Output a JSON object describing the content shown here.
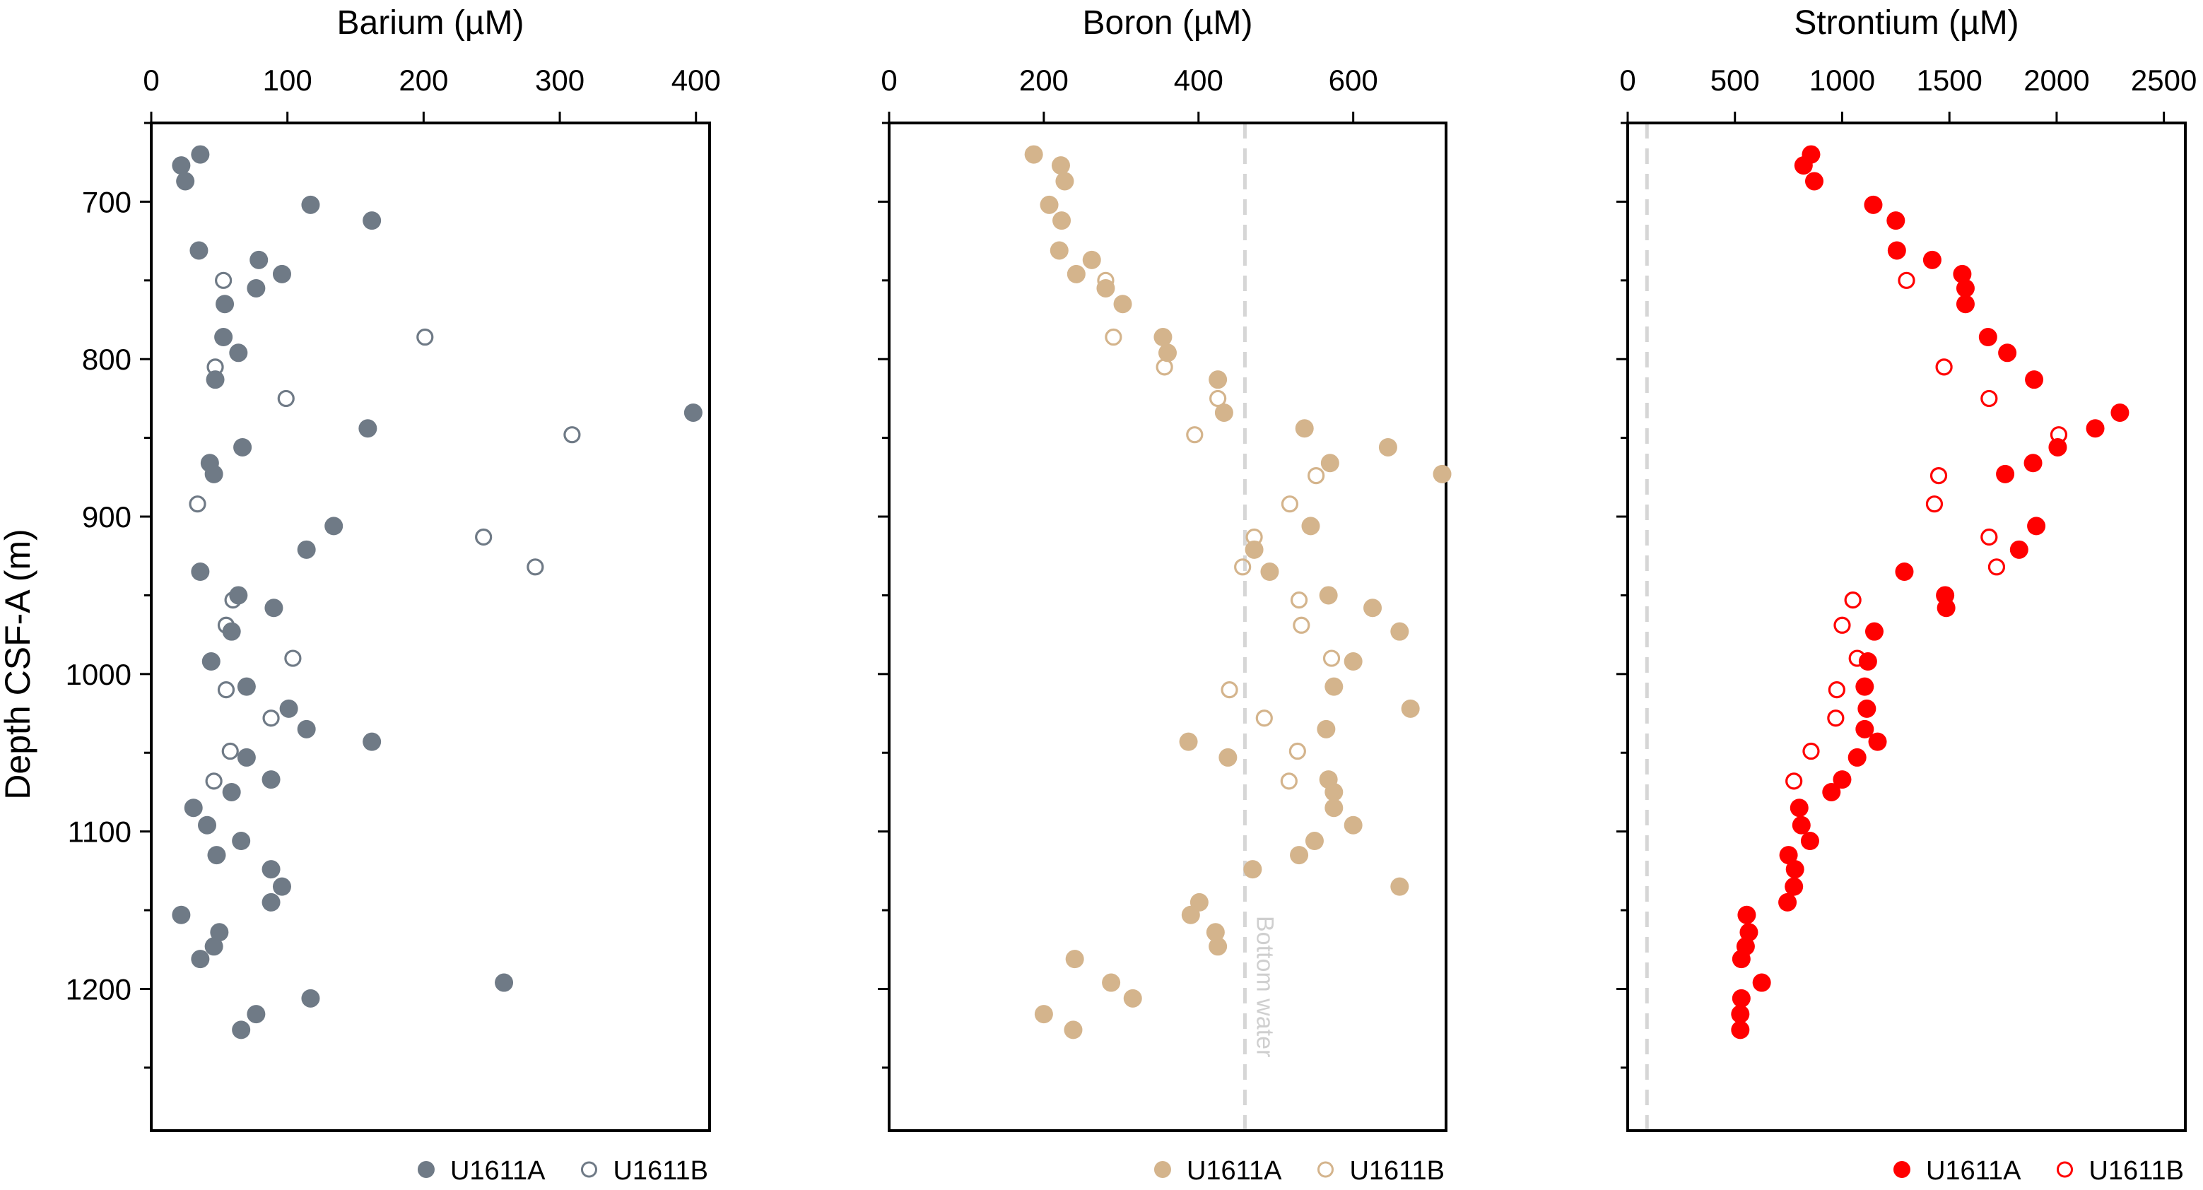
{
  "y_axis_label": "Depth CSF-A (m)",
  "chart_data": [
    {
      "type": "scatter",
      "title": "Barium (µM)",
      "xlabel": "Barium (µM)",
      "ylabel": "Depth CSF-A (m)",
      "xlim": [
        0,
        410
      ],
      "ylim": [
        1290,
        650
      ],
      "x_ticks": [
        0,
        100,
        200,
        300,
        400
      ],
      "y_ticks": [
        700,
        800,
        900,
        1000,
        1100,
        1200
      ],
      "grid": false,
      "legend_position": "bottom-right",
      "color": "#6f7a86",
      "series": [
        {
          "name": "U1611A",
          "marker": "filled-circle",
          "points": [
            [
              36,
              670
            ],
            [
              22,
              677
            ],
            [
              25,
              687
            ],
            [
              117,
              702
            ],
            [
              162,
              712
            ],
            [
              35,
              731
            ],
            [
              79,
              737
            ],
            [
              96,
              746
            ],
            [
              77,
              755
            ],
            [
              54,
              765
            ],
            [
              53,
              786
            ],
            [
              64,
              796
            ],
            [
              47,
              813
            ],
            [
              398,
              834
            ],
            [
              159,
              844
            ],
            [
              67,
              856
            ],
            [
              43,
              866
            ],
            [
              46,
              873
            ],
            [
              134,
              906
            ],
            [
              114,
              921
            ],
            [
              36,
              935
            ],
            [
              64,
              950
            ],
            [
              90,
              958
            ],
            [
              59,
              973
            ],
            [
              44,
              992
            ],
            [
              70,
              1008
            ],
            [
              101,
              1022
            ],
            [
              114,
              1035
            ],
            [
              162,
              1043
            ],
            [
              70,
              1053
            ],
            [
              88,
              1067
            ],
            [
              59,
              1075
            ],
            [
              31,
              1085
            ],
            [
              41,
              1096
            ],
            [
              66,
              1106
            ],
            [
              48,
              1115
            ],
            [
              88,
              1124
            ],
            [
              96,
              1135
            ],
            [
              88,
              1145
            ],
            [
              22,
              1153
            ],
            [
              50,
              1164
            ],
            [
              46,
              1173
            ],
            [
              36,
              1181
            ],
            [
              259,
              1196
            ],
            [
              117,
              1206
            ],
            [
              77,
              1216
            ],
            [
              66,
              1226
            ]
          ]
        },
        {
          "name": "U1611B",
          "marker": "open-circle",
          "points": [
            [
              53,
              750
            ],
            [
              201,
              786
            ],
            [
              47,
              805
            ],
            [
              99,
              825
            ],
            [
              309,
              848
            ],
            [
              34,
              892
            ],
            [
              244,
              913
            ],
            [
              282,
              932
            ],
            [
              60,
              953
            ],
            [
              55,
              969
            ],
            [
              104,
              990
            ],
            [
              55,
              1010
            ],
            [
              88,
              1028
            ],
            [
              58,
              1049
            ],
            [
              46,
              1068
            ]
          ]
        }
      ]
    },
    {
      "type": "scatter",
      "title": "Boron (µM)",
      "xlabel": "Boron (µM)",
      "ylabel": "Depth CSF-A (m)",
      "xlim": [
        0,
        720
      ],
      "ylim": [
        1290,
        650
      ],
      "x_ticks": [
        0,
        200,
        400,
        600
      ],
      "y_ticks": [
        700,
        800,
        900,
        1000,
        1100,
        1200
      ],
      "grid": false,
      "legend_position": "bottom-right",
      "color": "#d4b48c",
      "reference_line": {
        "value": 460,
        "label": "Bottom water",
        "color": "#d6d6d6",
        "style": "dashed"
      },
      "series": [
        {
          "name": "U1611A",
          "marker": "filled-circle",
          "points": [
            [
              187,
              670
            ],
            [
              222,
              677
            ],
            [
              227,
              687
            ],
            [
              207,
              702
            ],
            [
              223,
              712
            ],
            [
              262,
              737
            ],
            [
              220,
              731
            ],
            [
              242,
              746
            ],
            [
              280,
              755
            ],
            [
              302,
              765
            ],
            [
              354,
              786
            ],
            [
              360,
              796
            ],
            [
              425,
              813
            ],
            [
              433,
              834
            ],
            [
              537,
              844
            ],
            [
              645,
              856
            ],
            [
              570,
              866
            ],
            [
              715,
              873
            ],
            [
              545,
              906
            ],
            [
              472,
              921
            ],
            [
              492,
              935
            ],
            [
              568,
              950
            ],
            [
              625,
              958
            ],
            [
              660,
              973
            ],
            [
              600,
              992
            ],
            [
              575,
              1008
            ],
            [
              674,
              1022
            ],
            [
              565,
              1035
            ],
            [
              387,
              1043
            ],
            [
              438,
              1053
            ],
            [
              568,
              1067
            ],
            [
              575,
              1075
            ],
            [
              575,
              1085
            ],
            [
              600,
              1096
            ],
            [
              550,
              1106
            ],
            [
              530,
              1115
            ],
            [
              470,
              1124
            ],
            [
              660,
              1135
            ],
            [
              401,
              1145
            ],
            [
              390,
              1153
            ],
            [
              422,
              1164
            ],
            [
              425,
              1173
            ],
            [
              240,
              1181
            ],
            [
              287,
              1196
            ],
            [
              315,
              1206
            ],
            [
              200,
              1216
            ],
            [
              238,
              1226
            ]
          ]
        },
        {
          "name": "U1611B",
          "marker": "open-circle",
          "points": [
            [
              280,
              750
            ],
            [
              290,
              786
            ],
            [
              356,
              805
            ],
            [
              425,
              825
            ],
            [
              395,
              848
            ],
            [
              552,
              874
            ],
            [
              518,
              892
            ],
            [
              472,
              913
            ],
            [
              457,
              932
            ],
            [
              530,
              953
            ],
            [
              533,
              969
            ],
            [
              572,
              990
            ],
            [
              440,
              1010
            ],
            [
              485,
              1028
            ],
            [
              528,
              1049
            ],
            [
              517,
              1068
            ]
          ]
        }
      ]
    },
    {
      "type": "scatter",
      "title": "Strontium (µM)",
      "xlabel": "Strontium (µM)",
      "ylabel": "Depth CSF-A (m)",
      "xlim": [
        0,
        2600
      ],
      "ylim": [
        1290,
        650
      ],
      "x_ticks": [
        0,
        500,
        1000,
        1500,
        2000,
        2500
      ],
      "y_ticks": [
        700,
        800,
        900,
        1000,
        1100,
        1200
      ],
      "grid": false,
      "legend_position": "bottom-right",
      "color": "#ff0000",
      "reference_line": {
        "value": 90,
        "label": "",
        "color": "#d6d6d6",
        "style": "dashed"
      },
      "series": [
        {
          "name": "U1611A",
          "marker": "filled-circle",
          "points": [
            [
              855,
              670
            ],
            [
              820,
              677
            ],
            [
              870,
              687
            ],
            [
              1145,
              702
            ],
            [
              1250,
              712
            ],
            [
              1420,
              737
            ],
            [
              1255,
              731
            ],
            [
              1560,
              746
            ],
            [
              1575,
              755
            ],
            [
              1575,
              765
            ],
            [
              1680,
              786
            ],
            [
              1770,
              796
            ],
            [
              1895,
              813
            ],
            [
              2295,
              834
            ],
            [
              2180,
              844
            ],
            [
              2005,
              856
            ],
            [
              1890,
              866
            ],
            [
              1760,
              873
            ],
            [
              1905,
              906
            ],
            [
              1825,
              921
            ],
            [
              1290,
              935
            ],
            [
              1480,
              950
            ],
            [
              1485,
              958
            ],
            [
              1150,
              973
            ],
            [
              1120,
              992
            ],
            [
              1105,
              1008
            ],
            [
              1115,
              1022
            ],
            [
              1105,
              1035
            ],
            [
              1165,
              1043
            ],
            [
              1070,
              1053
            ],
            [
              1000,
              1067
            ],
            [
              950,
              1075
            ],
            [
              800,
              1085
            ],
            [
              810,
              1096
            ],
            [
              850,
              1106
            ],
            [
              750,
              1115
            ],
            [
              780,
              1124
            ],
            [
              775,
              1135
            ],
            [
              745,
              1145
            ],
            [
              555,
              1153
            ],
            [
              565,
              1164
            ],
            [
              550,
              1173
            ],
            [
              530,
              1181
            ],
            [
              625,
              1196
            ],
            [
              530,
              1206
            ],
            [
              525,
              1216
            ],
            [
              525,
              1226
            ]
          ]
        },
        {
          "name": "U1611B",
          "marker": "open-circle",
          "points": [
            [
              1300,
              750
            ],
            [
              1475,
              805
            ],
            [
              1685,
              825
            ],
            [
              2010,
              848
            ],
            [
              1450,
              874
            ],
            [
              1430,
              892
            ],
            [
              1685,
              913
            ],
            [
              1720,
              932
            ],
            [
              1050,
              953
            ],
            [
              1000,
              969
            ],
            [
              1070,
              990
            ],
            [
              975,
              1010
            ],
            [
              970,
              1028
            ],
            [
              855,
              1049
            ],
            [
              775,
              1068
            ]
          ]
        }
      ]
    }
  ]
}
